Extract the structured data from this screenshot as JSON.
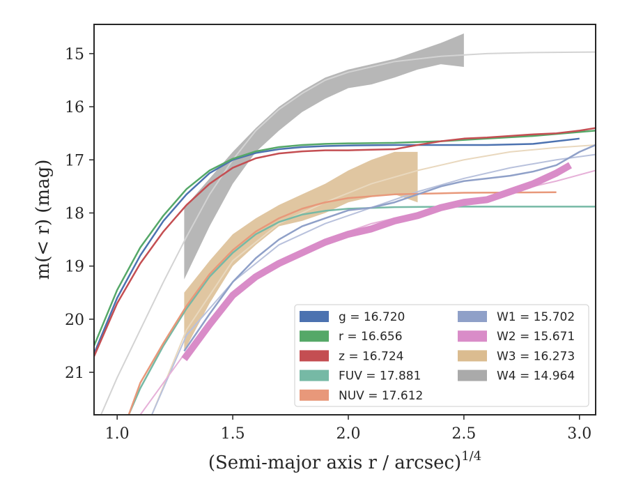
{
  "chart_data": {
    "type": "line",
    "xlabel": "(Semi-major axis r / arcsec)",
    "xlabel_sup": "1/4",
    "ylabel": "m(< r) (mag)",
    "xlim": [
      0.9,
      3.07
    ],
    "ylim": [
      21.8,
      14.45
    ],
    "y_inverted": true,
    "grid": false,
    "legend_placement": "lower-right",
    "x_ticks": [
      1.0,
      1.5,
      2.0,
      2.5,
      3.0
    ],
    "x_tick_labels": [
      "1.0",
      "1.5",
      "2.0",
      "2.5",
      "3.0"
    ],
    "y_ticks": [
      15,
      16,
      17,
      18,
      19,
      20,
      21
    ],
    "y_tick_labels": [
      "15",
      "16",
      "17",
      "18",
      "19",
      "20",
      "21"
    ],
    "legend": [
      {
        "label": "g = 16.720",
        "color": "#4c72b0"
      },
      {
        "label": "r = 16.656",
        "color": "#55a868"
      },
      {
        "label": "z = 16.724",
        "color": "#c44e52"
      },
      {
        "label": "FUV = 17.881",
        "color": "#76b9a5"
      },
      {
        "label": "NUV = 17.612",
        "color": "#e8987a"
      },
      {
        "label": "W1 = 15.702",
        "color": "#8fa0c8"
      },
      {
        "label": "W2 = 15.671",
        "color": "#d98cc8"
      },
      {
        "label": "W3 = 16.273",
        "color": "#dbbc90"
      },
      {
        "label": "W4 = 14.964",
        "color": "#aaaaaa"
      }
    ],
    "series": [
      {
        "name": "W4",
        "color": "#aaaaaa",
        "kind": "band",
        "x": [
          1.29,
          1.4,
          1.5,
          1.6,
          1.7,
          1.8,
          1.9,
          2.0,
          2.1,
          2.2,
          2.3,
          2.4,
          2.5
        ],
        "y_upper": [
          17.9,
          17.35,
          16.85,
          16.4,
          16.0,
          15.7,
          15.45,
          15.3,
          15.2,
          15.1,
          14.95,
          14.8,
          14.62
        ],
        "y_lower": [
          19.25,
          18.25,
          17.45,
          16.85,
          16.45,
          16.1,
          15.85,
          15.65,
          15.58,
          15.45,
          15.3,
          15.2,
          15.25
        ]
      },
      {
        "name": "W3",
        "color": "#dbbc90",
        "kind": "band",
        "x": [
          1.29,
          1.4,
          1.5,
          1.6,
          1.7,
          1.8,
          1.9,
          2.0,
          2.1,
          2.2,
          2.3
        ],
        "y_upper": [
          19.5,
          18.9,
          18.4,
          18.1,
          17.85,
          17.65,
          17.45,
          17.2,
          17.0,
          16.85,
          16.85
        ],
        "y_lower": [
          20.6,
          19.7,
          19.0,
          18.6,
          18.25,
          18.15,
          18.0,
          17.8,
          17.7,
          17.65,
          17.8
        ]
      },
      {
        "name": "W4 model",
        "color": "#d3d3d3",
        "kind": "line",
        "x": [
          0.93,
          1.0,
          1.1,
          1.2,
          1.3,
          1.4,
          1.5,
          1.6,
          1.7,
          1.8,
          1.9,
          2.0,
          2.2,
          2.4,
          2.6,
          2.8,
          3.07
        ],
        "y": [
          21.8,
          21.1,
          20.2,
          19.3,
          18.45,
          17.65,
          17.0,
          16.45,
          16.05,
          15.75,
          15.5,
          15.35,
          15.15,
          15.05,
          15.0,
          14.98,
          14.97
        ]
      },
      {
        "name": "W3 model",
        "color": "#e9d8be",
        "kind": "line",
        "x": [
          1.15,
          1.3,
          1.5,
          1.7,
          1.9,
          2.1,
          2.3,
          2.5,
          2.7,
          2.9,
          3.07
        ],
        "y": [
          21.8,
          20.2,
          18.9,
          18.2,
          17.8,
          17.45,
          17.2,
          17.0,
          16.85,
          16.77,
          16.72
        ]
      },
      {
        "name": "W1 model",
        "color": "#b8c1dc",
        "kind": "line",
        "x": [
          1.15,
          1.3,
          1.5,
          1.7,
          1.9,
          2.1,
          2.3,
          2.5,
          2.7,
          2.9,
          3.07
        ],
        "y": [
          21.8,
          20.3,
          19.3,
          18.6,
          18.2,
          17.9,
          17.6,
          17.35,
          17.15,
          17.0,
          16.9
        ]
      },
      {
        "name": "W2 model",
        "color": "#e6b0d8",
        "kind": "line",
        "x": [
          1.1,
          1.3,
          1.5,
          1.7,
          1.9,
          2.1,
          2.3,
          2.5,
          2.7,
          2.9,
          3.07
        ],
        "y": [
          21.8,
          20.6,
          19.55,
          18.95,
          18.5,
          18.2,
          18.0,
          17.8,
          17.6,
          17.4,
          17.2
        ]
      },
      {
        "name": "FUV",
        "color": "#76b9a5",
        "kind": "line",
        "x": [
          1.05,
          1.1,
          1.2,
          1.3,
          1.4,
          1.5,
          1.6,
          1.7,
          1.8,
          1.9,
          2.0,
          2.2,
          2.5,
          3.07
        ],
        "y": [
          21.8,
          21.3,
          20.5,
          19.8,
          19.2,
          18.75,
          18.4,
          18.17,
          18.03,
          17.96,
          17.92,
          17.89,
          17.88,
          17.88
        ]
      },
      {
        "name": "NUV",
        "color": "#e8987a",
        "kind": "line",
        "x": [
          1.05,
          1.1,
          1.2,
          1.3,
          1.4,
          1.5,
          1.6,
          1.7,
          1.8,
          1.9,
          2.0,
          2.2,
          2.5,
          2.9
        ],
        "y": [
          21.8,
          21.2,
          20.45,
          19.75,
          19.15,
          18.7,
          18.35,
          18.1,
          17.92,
          17.8,
          17.72,
          17.65,
          17.62,
          17.61
        ]
      },
      {
        "name": "W1",
        "color": "#8fa0c8",
        "kind": "line",
        "x": [
          1.29,
          1.4,
          1.5,
          1.6,
          1.7,
          1.8,
          1.9,
          2.0,
          2.1,
          2.2,
          2.3,
          2.4,
          2.5,
          2.6,
          2.7,
          2.8,
          2.9,
          3.0,
          3.07
        ],
        "y": [
          20.6,
          19.9,
          19.3,
          18.85,
          18.5,
          18.25,
          18.1,
          17.95,
          17.9,
          17.8,
          17.65,
          17.5,
          17.4,
          17.35,
          17.3,
          17.22,
          17.1,
          16.85,
          16.72
        ]
      },
      {
        "name": "W2",
        "color": "#d98cc8",
        "kind": "thick",
        "x": [
          1.29,
          1.4,
          1.5,
          1.6,
          1.7,
          1.8,
          1.9,
          2.0,
          2.1,
          2.2,
          2.3,
          2.4,
          2.5,
          2.6,
          2.7,
          2.8,
          2.9,
          2.96
        ],
        "y": [
          20.75,
          20.1,
          19.55,
          19.2,
          18.95,
          18.75,
          18.55,
          18.4,
          18.3,
          18.15,
          18.05,
          17.9,
          17.8,
          17.75,
          17.6,
          17.45,
          17.25,
          17.1
        ]
      },
      {
        "name": "g",
        "color": "#4c72b0",
        "kind": "line",
        "x": [
          0.9,
          1.0,
          1.1,
          1.2,
          1.3,
          1.4,
          1.5,
          1.6,
          1.7,
          1.8,
          1.9,
          2.0,
          2.2,
          2.4,
          2.6,
          2.8,
          3.0
        ],
        "y": [
          20.65,
          19.6,
          18.8,
          18.15,
          17.65,
          17.25,
          17.0,
          16.87,
          16.8,
          16.76,
          16.74,
          16.73,
          16.72,
          16.72,
          16.72,
          16.7,
          16.6
        ]
      },
      {
        "name": "r",
        "color": "#55a868",
        "kind": "line",
        "x": [
          0.9,
          1.0,
          1.1,
          1.2,
          1.3,
          1.4,
          1.5,
          1.6,
          1.7,
          1.8,
          1.9,
          2.0,
          2.2,
          2.4,
          2.6,
          2.8,
          3.07
        ],
        "y": [
          20.5,
          19.45,
          18.65,
          18.05,
          17.55,
          17.2,
          16.98,
          16.84,
          16.76,
          16.72,
          16.7,
          16.69,
          16.68,
          16.65,
          16.6,
          16.55,
          16.45
        ]
      },
      {
        "name": "z",
        "color": "#c44e52",
        "kind": "line",
        "x": [
          0.9,
          1.0,
          1.1,
          1.2,
          1.3,
          1.4,
          1.5,
          1.6,
          1.7,
          1.8,
          1.9,
          2.0,
          2.1,
          2.2,
          2.3,
          2.4,
          2.5,
          2.6,
          2.7,
          2.8,
          2.9,
          3.0,
          3.07
        ],
        "y": [
          20.7,
          19.7,
          18.95,
          18.35,
          17.85,
          17.45,
          17.15,
          16.97,
          16.88,
          16.84,
          16.82,
          16.82,
          16.81,
          16.8,
          16.72,
          16.65,
          16.6,
          16.58,
          16.55,
          16.52,
          16.5,
          16.45,
          16.4
        ]
      }
    ]
  }
}
